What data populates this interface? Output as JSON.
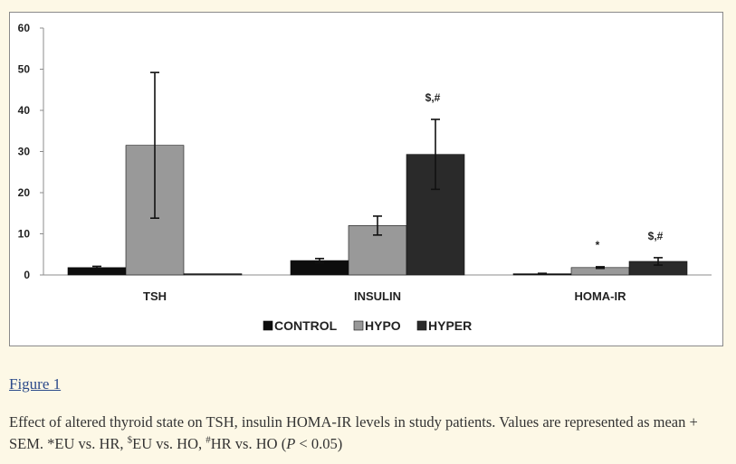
{
  "chart_data": {
    "type": "bar",
    "categories": [
      "TSH",
      "INSULIN",
      "HOMA-IR"
    ],
    "series": [
      {
        "name": "CONTROL",
        "color": "#0d0d0d",
        "values": [
          1.8,
          3.5,
          0.3
        ],
        "errors": [
          0.3,
          0.5,
          0.1
        ]
      },
      {
        "name": "HYPO",
        "color": "#999999",
        "values": [
          31.5,
          12.0,
          1.8
        ],
        "errors": [
          17.7,
          2.3,
          0.2
        ]
      },
      {
        "name": "HYPER",
        "color": "#2a2a2a",
        "values": [
          0.3,
          29.3,
          3.3
        ],
        "errors": [
          0,
          8.5,
          0.9
        ]
      }
    ],
    "ylim": [
      0,
      60
    ],
    "yticks": [
      0,
      10,
      20,
      30,
      40,
      50,
      60
    ],
    "annotations": [
      {
        "category": "INSULIN",
        "series": "HYPER",
        "text": "$,#"
      },
      {
        "category": "HOMA-IR",
        "series": "HYPO",
        "text": "*"
      },
      {
        "category": "HOMA-IR",
        "series": "HYPER",
        "text": "$,#"
      }
    ],
    "legend_position": "bottom-center",
    "title": "",
    "xlabel": "",
    "ylabel": ""
  },
  "figure": {
    "link_label": "Figure 1",
    "caption": {
      "p1": "Effect of altered thyroid state on TSH, insulin HOMA-IR levels in study patients. Values are represented as mean + SEM. *EU vs. HR, ",
      "sup1": "$",
      "p2": "EU vs. HO, ",
      "sup2": "#",
      "p3": "HR vs. HO (",
      "pvar": "P",
      "p4": " < 0.05)"
    }
  }
}
